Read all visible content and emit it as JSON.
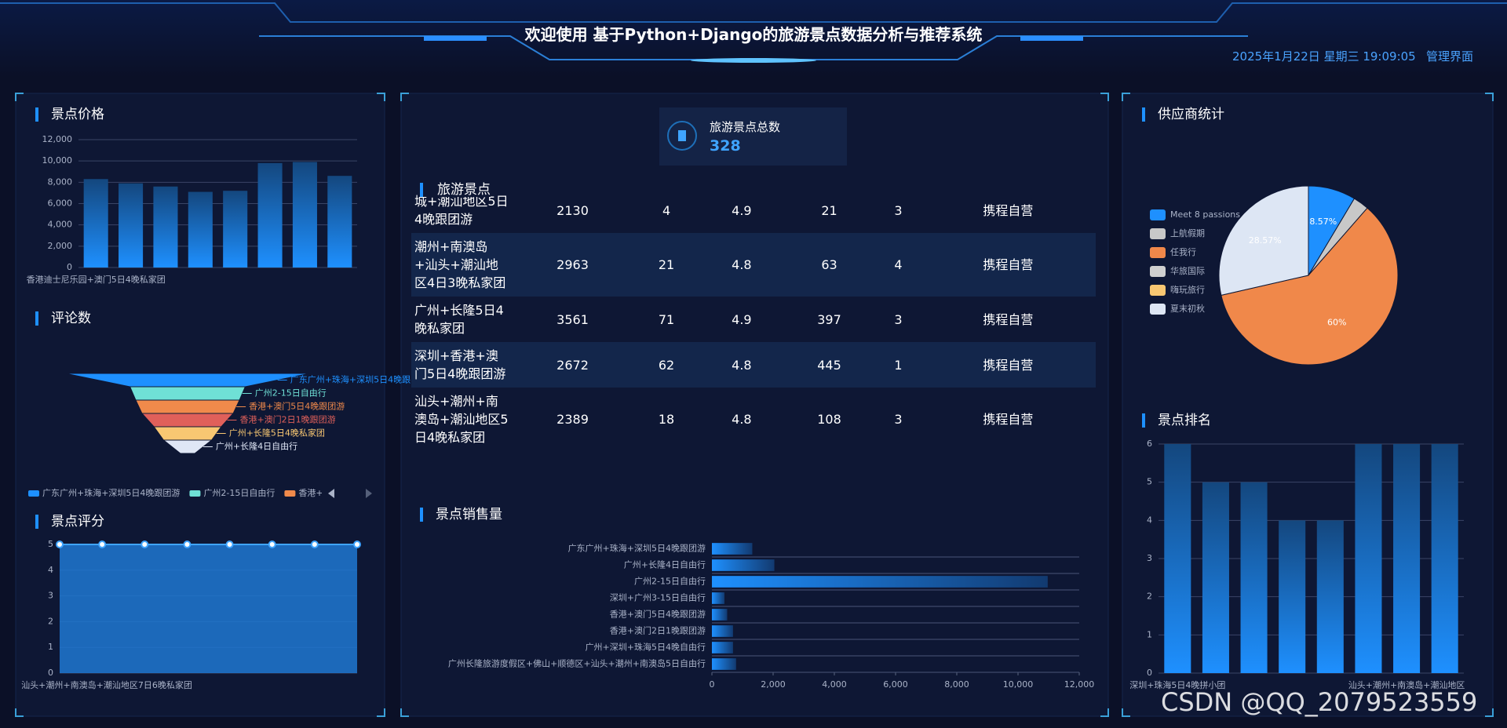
{
  "header": {
    "title": "欢迎使用 基于Python+Django的旅游景点数据分析与推荐系统",
    "datetime": "2025年1月22日 星期三 19:09:05",
    "admin_link": "管理界面"
  },
  "stat": {
    "label": "旅游景点总数",
    "value": 328
  },
  "table": {
    "title": "旅游景点",
    "rows": [
      [
        "城+潮汕地区5日4晚跟团游",
        2130,
        4,
        4.9,
        21,
        3,
        "携程自营"
      ],
      [
        "潮州+南澳岛+汕头+潮汕地区4日3晚私家团",
        2963,
        21,
        4.8,
        63,
        4,
        "携程自营"
      ],
      [
        "广州+长隆5日4晚私家团",
        3561,
        71,
        4.9,
        397,
        3,
        "携程自营"
      ],
      [
        "深圳+香港+澳门5日4晚跟团游",
        2672,
        62,
        4.8,
        445,
        1,
        "携程自营"
      ],
      [
        "汕头+潮州+南澳岛+潮汕地区5日4晚私家团",
        2389,
        18,
        4.8,
        108,
        3,
        "携程自营"
      ]
    ]
  },
  "watermark": "CSDN @QQ_2079523559",
  "chart_data": [
    {
      "type": "bar",
      "title": "景点价格",
      "categories": [
        "香港迪士尼乐园+澳门5日4晚私家团",
        null,
        null,
        null,
        null,
        null,
        null,
        null
      ],
      "values": [
        8300,
        7900,
        7600,
        7100,
        7200,
        9800,
        9900,
        8600
      ],
      "color": "#1e90ff",
      "ylim": [
        0,
        12000
      ],
      "yticks": [
        0,
        {
          "value": 2000,
          "label": "2,000"
        },
        {
          "value": 4000,
          "label": "4,000"
        },
        {
          "value": 6000,
          "label": "6,000"
        },
        {
          "value": 8000,
          "label": "8,000"
        },
        {
          "value": 10000,
          "label": "10,000"
        },
        {
          "value": 12000,
          "label": "12,000"
        }
      ],
      "grid": true
    },
    {
      "type": "funnel",
      "title": "评论数",
      "categories": [
        "广东广州+珠海+深圳5日4晚跟团游",
        "广州2-15日自由行",
        "香港+澳门5日4晚跟团游",
        "香港+澳门2日1晚跟团游",
        "广州+长隆5日4晚私家团",
        "广州+长隆4日自由行"
      ],
      "values": [
        255,
        120,
        108,
        95,
        70,
        50
      ],
      "colors": [
        "#1e90ff",
        "#6fe0d6",
        "#f08a4b",
        "#e0605a",
        "#f8c772",
        "#dfe6f5"
      ],
      "legend": true
    },
    {
      "type": "area",
      "title": "景点评分",
      "categories": [
        "汕头+潮州+南澳岛+潮汕地区7日6晚私家团",
        null,
        null,
        null,
        null,
        null,
        null,
        null
      ],
      "values": [
        5,
        5,
        5,
        5,
        5,
        5,
        5,
        5
      ],
      "color": "#1e78d2",
      "ylim": [
        0,
        5
      ],
      "yticks": [
        0,
        1,
        2,
        3,
        4,
        5
      ],
      "grid": true
    },
    {
      "type": "bar",
      "horizontal": true,
      "title": "景点销售量",
      "categories": [
        "广东广州+珠海+深圳5日4晚跟团游",
        "广州+长隆4日自由行",
        "广州2-15日自由行",
        "深圳+广州3-15日自由行",
        "香港+澳门5日4晚跟团游",
        "香港+澳门2日1晚跟团游",
        "广州+深圳+珠海5日4晚自由行",
        "广州长隆旅游度假区+佛山+顺德区+汕头+潮州+南澳岛5日自由行"
      ],
      "values": [
        1320,
        2040,
        10970,
        410,
        500,
        690,
        690,
        790
      ],
      "color": "#1e90ff",
      "xlim": [
        0,
        12000
      ],
      "xticks": [
        0,
        {
          "value": 2000,
          "label": "2,000"
        },
        {
          "value": 4000,
          "label": "4,000"
        },
        {
          "value": 6000,
          "label": "6,000"
        },
        {
          "value": 8000,
          "label": "8,000"
        },
        {
          "value": 10000,
          "label": "10,000"
        },
        {
          "value": 12000,
          "label": "12,000"
        }
      ]
    },
    {
      "type": "pie",
      "title": "供应商统计",
      "categories": [
        "Meet 8 passions",
        "上航假期",
        "任我行",
        "华旅国际",
        "嗨玩旅行",
        "夏末初秋"
      ],
      "values": [
        8.57,
        2.86,
        60,
        0,
        0,
        28.57
      ],
      "value_labels": [
        "8.57%",
        null,
        "60%",
        null,
        null,
        "28.57%"
      ],
      "colors": [
        "#1e90ff",
        "#c8c8c8",
        "#f0884a",
        "#cfcfcf",
        "#f8c772",
        "#dde6f4"
      ],
      "legend": "left"
    },
    {
      "type": "bar",
      "title": "景点排名",
      "categories": [
        "深圳+珠海5日4晚拼小团",
        null,
        null,
        null,
        null,
        null,
        "汕头+潮州+南澳岛+潮汕地区",
        null
      ],
      "values": [
        6,
        5,
        5,
        4,
        4,
        6,
        6,
        6
      ],
      "color": "#1e90ff",
      "ylim": [
        0,
        6
      ],
      "yticks": [
        0,
        1,
        2,
        3,
        4,
        5,
        6
      ],
      "grid": true
    }
  ]
}
